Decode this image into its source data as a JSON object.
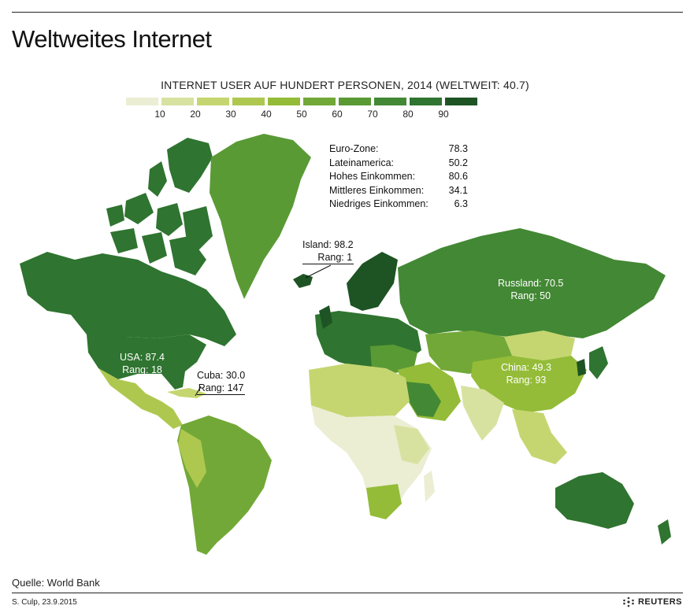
{
  "title": "Weltweites Internet",
  "legend": {
    "title": "INTERNET USER AUF HUNDERT PERSONEN, 2014 (WELTWEIT: 40.7)",
    "colors": [
      "#ebeed3",
      "#d8e2a0",
      "#c5d670",
      "#aec84f",
      "#94bc38",
      "#72a837",
      "#5a9a35",
      "#438834",
      "#2f7430",
      "#1e5424"
    ],
    "ticks": [
      "10",
      "20",
      "30",
      "40",
      "50",
      "60",
      "70",
      "80",
      "90"
    ]
  },
  "stats": [
    {
      "label": "Euro-Zone:",
      "value": "78.3"
    },
    {
      "label": "Lateinamerica:",
      "value": "50.2"
    },
    {
      "label": "Hohes Einkommen:",
      "value": "80.6"
    },
    {
      "label": "Mittleres Einkommen:",
      "value": "34.1"
    },
    {
      "label": "Niedriges Einkommen:",
      "value": "6.3"
    }
  ],
  "callouts": {
    "island": {
      "line1": "Island: 98.2",
      "line2": "Rang: 1"
    },
    "russland": {
      "line1": "Russland: 70.5",
      "line2": "Rang: 50"
    },
    "usa": {
      "line1": "USA: 87.4",
      "line2": "Rang: 18"
    },
    "cuba": {
      "line1": "Cuba: 30.0",
      "line2": "Rang: 147"
    },
    "china": {
      "line1": "China: 49.3",
      "line2": "Rang: 93"
    }
  },
  "source": "Quelle: World Bank",
  "credit": "S. Culp, 23.9.2015",
  "brand": "REUTERS",
  "map_regions": [
    {
      "name": "canada-arctic",
      "color": "#2f7430"
    },
    {
      "name": "greenland",
      "color": "#5a9a35"
    },
    {
      "name": "usa",
      "color": "#2f7430"
    },
    {
      "name": "mexico-central-america",
      "color": "#aec84f"
    },
    {
      "name": "south-america",
      "color": "#72a837"
    },
    {
      "name": "europe",
      "color": "#2f7430"
    },
    {
      "name": "russia",
      "color": "#438834"
    },
    {
      "name": "china",
      "color": "#94bc38"
    },
    {
      "name": "africa",
      "color": "#d8e2a0"
    },
    {
      "name": "australia",
      "color": "#2f7430"
    }
  ]
}
